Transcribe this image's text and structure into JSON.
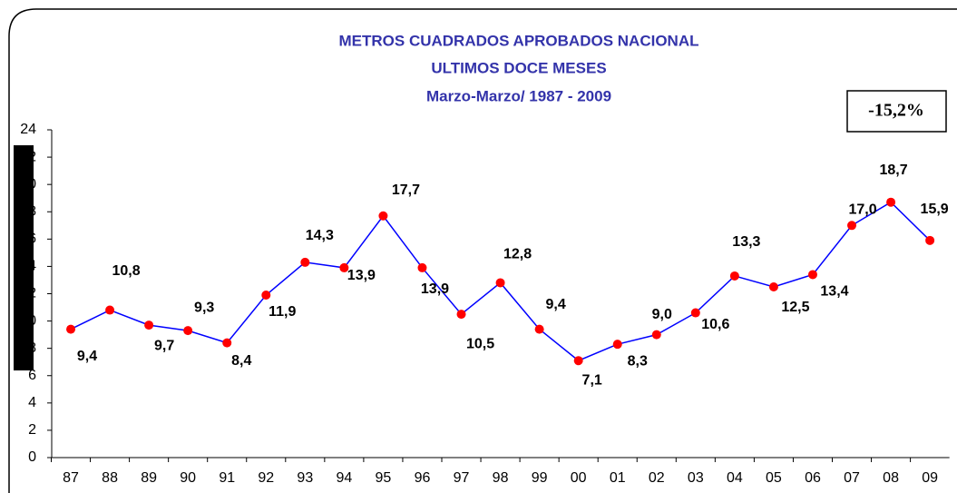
{
  "chart_data": {
    "type": "line",
    "title_lines": [
      "METROS CUADRADOS APROBADOS NACIONAL",
      "ULTIMOS DOCE MESES",
      "Marzo-Marzo/ 1987 - 2009"
    ],
    "annotation": "-15,2%",
    "categories": [
      "87",
      "88",
      "89",
      "90",
      "91",
      "92",
      "93",
      "94",
      "95",
      "96",
      "97",
      "98",
      "99",
      "00",
      "01",
      "02",
      "03",
      "04",
      "05",
      "06",
      "07",
      "08",
      "09"
    ],
    "series": [
      {
        "name": "Metros cuadrados",
        "color": "#0000ff",
        "marker_color": "#ff0000",
        "values": [
          9.4,
          10.8,
          9.7,
          9.3,
          8.4,
          11.9,
          14.3,
          13.9,
          17.7,
          13.9,
          10.5,
          12.8,
          9.4,
          7.1,
          8.3,
          9.0,
          10.6,
          13.3,
          12.5,
          13.4,
          17.0,
          18.7,
          15.9
        ],
        "value_labels": [
          "9,4",
          "10,8",
          "9,7",
          "9,3",
          "8,4",
          "11,9",
          "14,3",
          "13,9",
          "17,7",
          "13,9",
          "10,5",
          "12,8",
          "9,4",
          "7,1",
          "8,3",
          "9,0",
          "10,6",
          "13,3",
          "12,5",
          "13,4",
          "17,0",
          "18,7",
          "15,9"
        ]
      }
    ],
    "ylim": [
      0,
      24
    ],
    "yticks": [
      0,
      2,
      4,
      6,
      8,
      10,
      12,
      14,
      16,
      18,
      20,
      22,
      24
    ]
  }
}
